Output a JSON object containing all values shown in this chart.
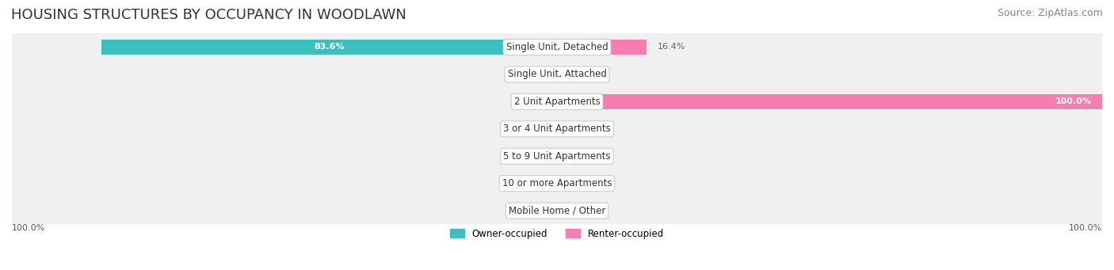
{
  "title": "HOUSING STRUCTURES BY OCCUPANCY IN WOODLAWN",
  "source": "Source: ZipAtlas.com",
  "categories": [
    "Single Unit, Detached",
    "Single Unit, Attached",
    "2 Unit Apartments",
    "3 or 4 Unit Apartments",
    "5 to 9 Unit Apartments",
    "10 or more Apartments",
    "Mobile Home / Other"
  ],
  "owner_values": [
    83.6,
    0.0,
    0.0,
    0.0,
    0.0,
    0.0,
    0.0
  ],
  "renter_values": [
    16.4,
    0.0,
    100.0,
    0.0,
    0.0,
    0.0,
    0.0
  ],
  "owner_color": "#3dbfbf",
  "renter_color": "#f47eb0",
  "bg_row_color": "#f0f0f0",
  "bar_height": 0.55,
  "xlim": [
    -100,
    100
  ],
  "x_axis_left_label": "100.0%",
  "x_axis_right_label": "100.0%",
  "legend_owner": "Owner-occupied",
  "legend_renter": "Renter-occupied",
  "title_fontsize": 13,
  "source_fontsize": 9,
  "label_fontsize": 8.5,
  "category_fontsize": 8.5,
  "bar_label_fontsize": 8,
  "axis_label_fontsize": 8
}
